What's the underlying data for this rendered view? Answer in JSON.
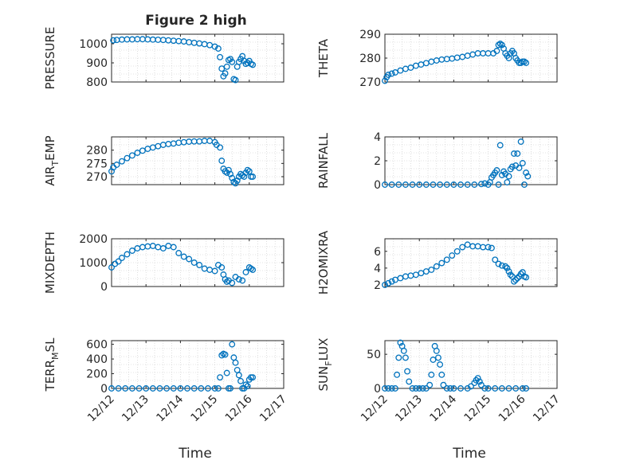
{
  "figure": {
    "title": "Figure 2 high"
  },
  "xaxis": {
    "label": "Time",
    "ticks": [
      {
        "value": 0,
        "label": "12/12"
      },
      {
        "value": 1,
        "label": "12/13"
      },
      {
        "value": 2,
        "label": "12/14"
      },
      {
        "value": 3,
        "label": "12/15"
      },
      {
        "value": 4,
        "label": "12/16"
      },
      {
        "value": 5,
        "label": "12/17"
      }
    ]
  },
  "colors": {
    "marker": "#0072BD",
    "grid": "#c8c8c8",
    "axis": "#262626"
  },
  "chart_data": [
    {
      "type": "scatter",
      "ylabel": "PRESSURE",
      "ylabel_sub": "",
      "ylim": [
        800,
        1050
      ],
      "yticks": [
        800,
        900,
        1000
      ],
      "xlim": [
        0,
        5
      ],
      "x": [
        0.05,
        0.15,
        0.3,
        0.45,
        0.6,
        0.75,
        0.9,
        1.05,
        1.2,
        1.35,
        1.5,
        1.65,
        1.8,
        1.95,
        2.1,
        2.25,
        2.4,
        2.55,
        2.7,
        2.85,
        3.0,
        3.1,
        3.15,
        3.2,
        3.25,
        3.3,
        3.35,
        3.4,
        3.45,
        3.5,
        3.55,
        3.6,
        3.65,
        3.7,
        3.75,
        3.8,
        3.85,
        3.9,
        3.95,
        4.0,
        4.05,
        4.1
      ],
      "y": [
        1018,
        1020,
        1022,
        1023,
        1023,
        1024,
        1024,
        1023,
        1022,
        1021,
        1020,
        1018,
        1016,
        1014,
        1012,
        1008,
        1005,
        1002,
        998,
        993,
        985,
        975,
        930,
        870,
        830,
        845,
        880,
        915,
        920,
        905,
        815,
        810,
        880,
        905,
        920,
        935,
        910,
        895,
        900,
        910,
        895,
        890
      ]
    },
    {
      "type": "scatter",
      "ylabel": "THETA",
      "ylabel_sub": "",
      "ylim": [
        270,
        290
      ],
      "yticks": [
        270,
        280,
        290
      ],
      "xlim": [
        0,
        5
      ],
      "x": [
        0.0,
        0.05,
        0.1,
        0.2,
        0.3,
        0.45,
        0.6,
        0.75,
        0.9,
        1.05,
        1.2,
        1.35,
        1.5,
        1.65,
        1.8,
        1.95,
        2.1,
        2.25,
        2.4,
        2.55,
        2.7,
        2.85,
        3.0,
        3.15,
        3.25,
        3.3,
        3.35,
        3.4,
        3.45,
        3.5,
        3.55,
        3.6,
        3.65,
        3.7,
        3.75,
        3.8,
        3.85,
        3.9,
        3.95,
        4.0,
        4.05,
        4.1
      ],
      "y": [
        270.5,
        272,
        273,
        273.5,
        274,
        274.8,
        275.5,
        276,
        276.8,
        277.3,
        277.9,
        278.5,
        279,
        279.4,
        279.6,
        279.8,
        280.2,
        280.5,
        281,
        281.5,
        282,
        282,
        282,
        282,
        283,
        285.5,
        286,
        285.5,
        284,
        282,
        281,
        280,
        282,
        283,
        282,
        280,
        279,
        278,
        278,
        278.5,
        278.5,
        278
      ]
    },
    {
      "type": "scatter",
      "ylabel": "AIR",
      "ylabel_sub": "T",
      "ylabel_suffix": "EMP",
      "ylim": [
        267,
        285
      ],
      "yticks": [
        270,
        275,
        280
      ],
      "xlim": [
        0,
        5
      ],
      "x": [
        0.0,
        0.05,
        0.15,
        0.3,
        0.45,
        0.6,
        0.75,
        0.9,
        1.05,
        1.2,
        1.35,
        1.5,
        1.65,
        1.8,
        1.95,
        2.1,
        2.25,
        2.4,
        2.55,
        2.7,
        2.85,
        3.0,
        3.05,
        3.15,
        3.2,
        3.25,
        3.3,
        3.35,
        3.4,
        3.45,
        3.5,
        3.55,
        3.6,
        3.65,
        3.7,
        3.75,
        3.8,
        3.85,
        3.9,
        3.95,
        4.0,
        4.05,
        4.1
      ],
      "y": [
        272,
        273.5,
        274.5,
        275.8,
        277,
        278,
        279,
        279.8,
        280.5,
        281,
        281.5,
        282,
        282.3,
        282.5,
        282.8,
        283,
        283.2,
        283.3,
        283.3,
        283.5,
        283.5,
        283,
        282,
        281,
        276,
        273,
        272,
        271.5,
        272.5,
        271,
        269.5,
        268,
        267.5,
        268.5,
        270,
        271,
        270.5,
        270,
        271.5,
        272.5,
        272,
        270,
        270
      ]
    },
    {
      "type": "scatter",
      "ylabel": "RAINFALL",
      "ylabel_sub": "",
      "ylim": [
        0,
        4
      ],
      "yticks": [
        0,
        2,
        4
      ],
      "xlim": [
        0,
        5
      ],
      "x": [
        0.0,
        0.2,
        0.4,
        0.6,
        0.8,
        1.0,
        1.2,
        1.4,
        1.6,
        1.8,
        2.0,
        2.2,
        2.4,
        2.6,
        2.8,
        2.9,
        3.0,
        3.05,
        3.1,
        3.15,
        3.2,
        3.25,
        3.3,
        3.35,
        3.4,
        3.45,
        3.5,
        3.55,
        3.6,
        3.65,
        3.7,
        3.75,
        3.8,
        3.85,
        3.9,
        3.95,
        4.0,
        4.05,
        4.1,
        4.15
      ],
      "y": [
        0,
        0,
        0,
        0,
        0,
        0,
        0,
        0,
        0,
        0,
        0,
        0,
        0,
        0,
        0.05,
        0.1,
        0,
        0.2,
        0.6,
        0.8,
        1.0,
        1.2,
        0,
        3.3,
        0.8,
        1.1,
        0.9,
        0.2,
        0.7,
        1.3,
        1.5,
        2.6,
        1.6,
        2.6,
        1.4,
        3.6,
        1.8,
        0,
        1.0,
        0.7
      ]
    },
    {
      "type": "scatter",
      "ylabel": "MIXDEPTH",
      "ylabel_sub": "",
      "ylim": [
        0,
        2000
      ],
      "yticks": [
        0,
        1000,
        2000
      ],
      "xlim": [
        0,
        5
      ],
      "x": [
        0.0,
        0.1,
        0.2,
        0.3,
        0.45,
        0.6,
        0.75,
        0.9,
        1.05,
        1.2,
        1.35,
        1.5,
        1.65,
        1.8,
        1.95,
        2.1,
        2.25,
        2.4,
        2.55,
        2.7,
        2.85,
        3.0,
        3.1,
        3.2,
        3.25,
        3.3,
        3.35,
        3.4,
        3.5,
        3.6,
        3.7,
        3.8,
        3.9,
        4.0,
        4.05,
        4.1
      ],
      "y": [
        800,
        950,
        1050,
        1200,
        1350,
        1500,
        1600,
        1650,
        1680,
        1700,
        1650,
        1600,
        1700,
        1650,
        1400,
        1250,
        1150,
        1000,
        900,
        750,
        700,
        650,
        900,
        800,
        500,
        300,
        200,
        250,
        150,
        400,
        300,
        250,
        600,
        800,
        750,
        700
      ]
    },
    {
      "type": "scatter",
      "ylabel": "H2OMIXRA",
      "ylabel_sub": "",
      "ylim": [
        1.8,
        7.5
      ],
      "yticks": [
        2,
        4,
        6
      ],
      "xlim": [
        0,
        5
      ],
      "x": [
        0.0,
        0.1,
        0.2,
        0.3,
        0.45,
        0.6,
        0.75,
        0.9,
        1.05,
        1.2,
        1.35,
        1.5,
        1.65,
        1.8,
        1.95,
        2.1,
        2.25,
        2.4,
        2.55,
        2.7,
        2.85,
        3.0,
        3.1,
        3.2,
        3.3,
        3.4,
        3.5,
        3.55,
        3.6,
        3.65,
        3.7,
        3.75,
        3.8,
        3.85,
        3.9,
        3.95,
        4.0,
        4.05,
        4.1
      ],
      "y": [
        2.0,
        2.2,
        2.4,
        2.6,
        2.8,
        3.0,
        3.1,
        3.2,
        3.4,
        3.6,
        3.8,
        4.2,
        4.6,
        5.0,
        5.5,
        6.0,
        6.5,
        6.8,
        6.6,
        6.6,
        6.5,
        6.5,
        6.4,
        5.0,
        4.5,
        4.3,
        4.2,
        4.0,
        3.6,
        3.2,
        3.0,
        2.4,
        2.6,
        2.8,
        3.0,
        3.3,
        3.5,
        3.0,
        2.9
      ]
    },
    {
      "type": "scatter",
      "ylabel": "TERR",
      "ylabel_sub": "M",
      "ylabel_suffix": "SL",
      "ylim": [
        0,
        650
      ],
      "yticks": [
        0,
        200,
        400,
        600
      ],
      "xlim": [
        0,
        5
      ],
      "x": [
        0.0,
        0.2,
        0.4,
        0.6,
        0.8,
        1.0,
        1.2,
        1.4,
        1.6,
        1.8,
        2.0,
        2.2,
        2.4,
        2.6,
        2.8,
        3.0,
        3.1,
        3.15,
        3.2,
        3.25,
        3.3,
        3.35,
        3.4,
        3.45,
        3.5,
        3.55,
        3.6,
        3.65,
        3.7,
        3.75,
        3.8,
        3.85,
        3.9,
        3.95,
        4.0,
        4.05,
        4.1
      ],
      "y": [
        0,
        0,
        0,
        0,
        0,
        0,
        0,
        0,
        0,
        0,
        0,
        0,
        0,
        0,
        0,
        0,
        0,
        150,
        450,
        470,
        460,
        210,
        0,
        0,
        600,
        420,
        350,
        250,
        180,
        100,
        0,
        0,
        50,
        30,
        120,
        150,
        150
      ]
    },
    {
      "type": "scatter",
      "ylabel": "SUN",
      "ylabel_sub": "F",
      "ylabel_suffix": "LUX",
      "ylim": [
        0,
        70
      ],
      "yticks": [
        0,
        50
      ],
      "xlim": [
        0,
        5
      ],
      "x": [
        0.0,
        0.1,
        0.2,
        0.3,
        0.35,
        0.4,
        0.45,
        0.5,
        0.55,
        0.6,
        0.65,
        0.7,
        0.8,
        0.9,
        1.0,
        1.1,
        1.2,
        1.3,
        1.35,
        1.4,
        1.45,
        1.5,
        1.55,
        1.6,
        1.65,
        1.7,
        1.8,
        1.9,
        2.0,
        2.2,
        2.4,
        2.5,
        2.6,
        2.65,
        2.7,
        2.75,
        2.8,
        2.9,
        3.0,
        3.2,
        3.4,
        3.6,
        3.8,
        4.0,
        4.1
      ],
      "y": [
        0,
        0,
        0,
        0,
        20,
        45,
        67,
        62,
        55,
        45,
        25,
        10,
        0,
        0,
        0,
        0,
        0,
        5,
        20,
        42,
        62,
        55,
        45,
        35,
        20,
        5,
        0,
        0,
        0,
        0,
        0,
        3,
        8,
        12,
        15,
        10,
        5,
        0,
        0,
        0,
        0,
        0,
        0,
        0,
        0
      ]
    }
  ]
}
